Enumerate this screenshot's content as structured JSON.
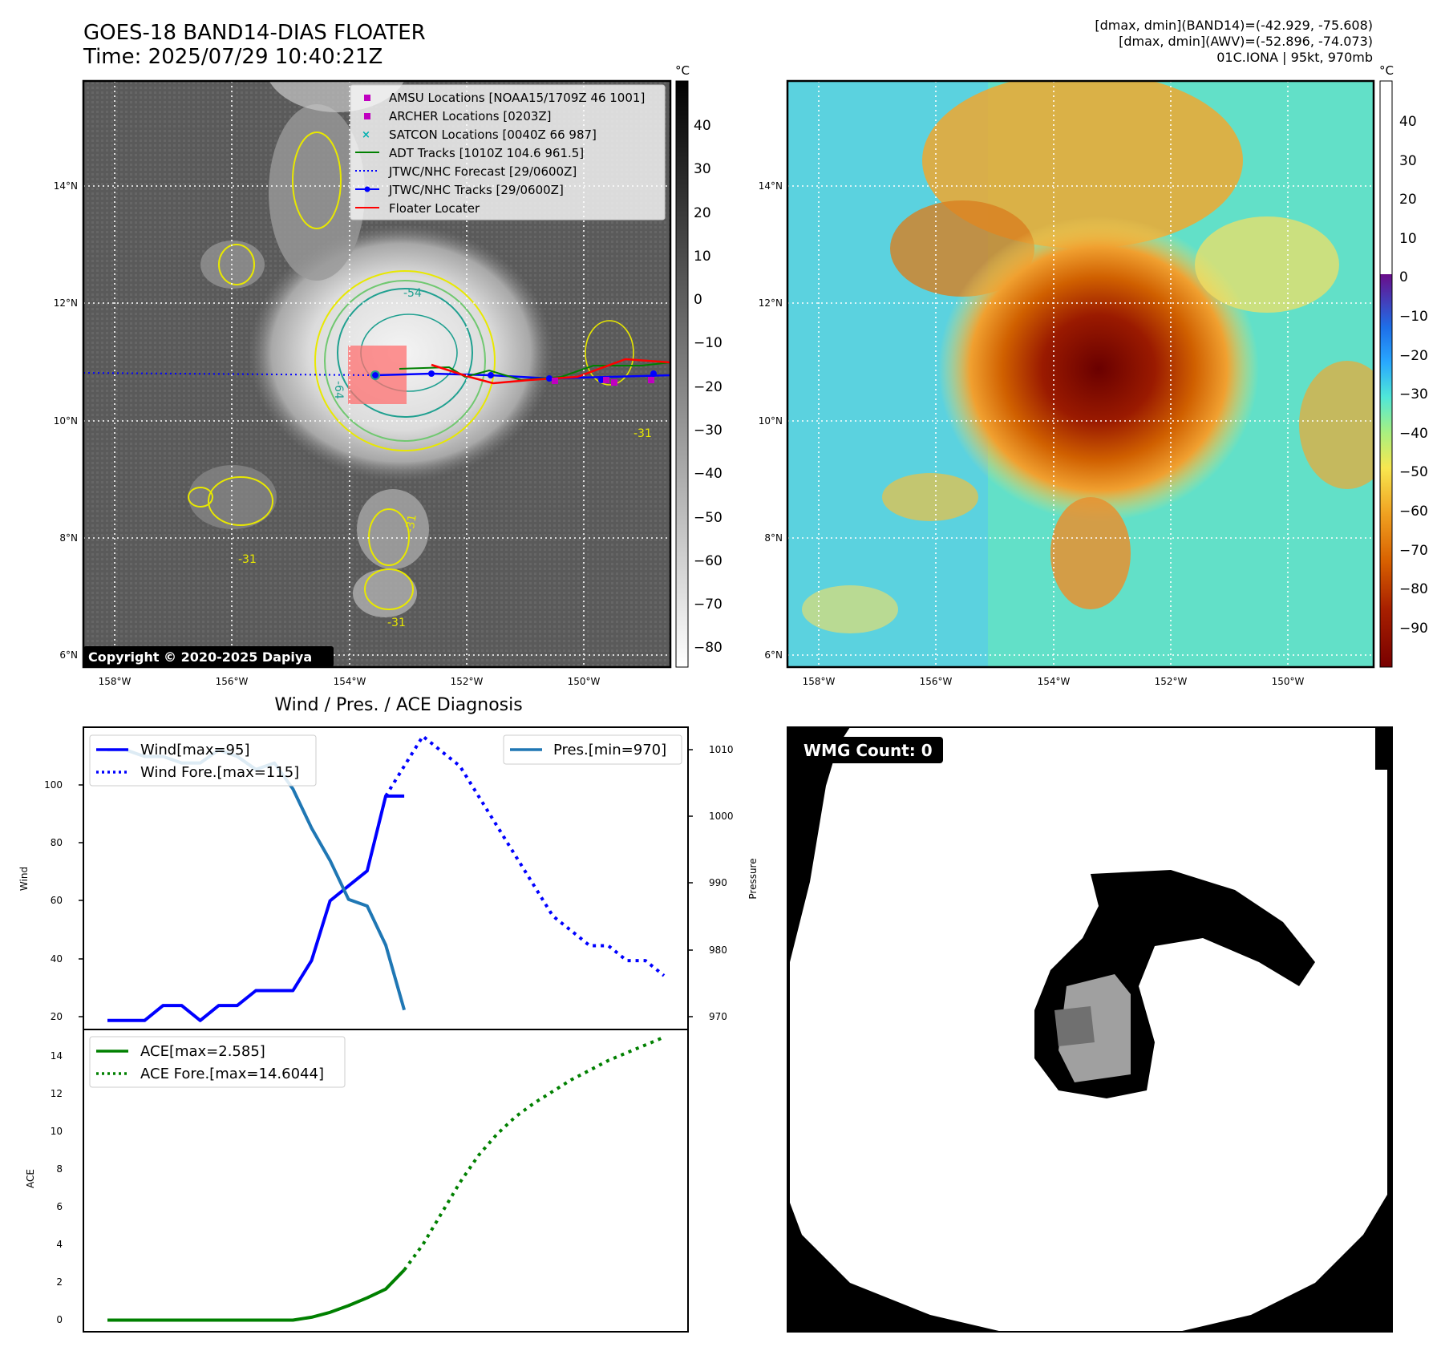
{
  "header": {
    "title_line1": "GOES-18 BAND14-DIAS FLOATER",
    "title_line2": "Time: 2025/07/29 10:40:21Z",
    "info_line1": "[dmax, dmin](BAND14)=(-42.929, -75.608)",
    "info_line2": "[dmax, dmin](AWV)=(-52.896, -74.073)",
    "info_line3": "01C.IONA | 95kt, 970mb"
  },
  "ir_map": {
    "lon_labels": [
      "158°W",
      "156°W",
      "154°W",
      "152°W",
      "150°W"
    ],
    "lat_labels": [
      "14°N",
      "12°N",
      "10°N",
      "8°N",
      "6°N"
    ],
    "colorbar_unit": "°C",
    "colorbar_ticks": [
      "40",
      "30",
      "20",
      "10",
      "0",
      "−10",
      "−20",
      "−30",
      "−40",
      "−50",
      "−60",
      "−70",
      "−80"
    ],
    "contour_labels": [
      "-54",
      "-64",
      "-31",
      "-31",
      "-31",
      "-31"
    ],
    "copyright": "Copyright © 2020-2025 Dapiya",
    "legend": [
      {
        "label": "AMSU Locations [NOAA15/1709Z 46 1001]",
        "color": "#c000c0",
        "marker": "square"
      },
      {
        "label": "ARCHER Locations [0203Z]",
        "color": "#c000c0",
        "marker": "square"
      },
      {
        "label": "SATCON Locations [0040Z 66 987]",
        "color": "#00b0b0",
        "marker": "x"
      },
      {
        "label": "ADT Tracks [1010Z 104.6 961.5]",
        "color": "#008000",
        "marker": "line"
      },
      {
        "label": "JTWC/NHC Forecast [29/0600Z]",
        "color": "#0000ff",
        "marker": "dotted"
      },
      {
        "label": "JTWC/NHC Tracks [29/0600Z]",
        "color": "#0000ff",
        "marker": "line-dot"
      },
      {
        "label": "Floater Locater",
        "color": "#ff0000",
        "marker": "line"
      }
    ]
  },
  "awv_map": {
    "lon_labels": [
      "158°W",
      "156°W",
      "154°W",
      "152°W",
      "150°W"
    ],
    "lat_labels": [
      "14°N",
      "12°N",
      "10°N",
      "8°N",
      "6°N"
    ],
    "colorbar_unit": "°C",
    "colorbar_ticks": [
      "40",
      "30",
      "20",
      "10",
      "0",
      "−10",
      "−20",
      "−30",
      "−40",
      "−50",
      "−60",
      "−70",
      "−80",
      "−90"
    ]
  },
  "diagnosis": {
    "title": "Wind / Pres. / ACE Diagnosis",
    "wind_ylabel": "Wind",
    "pres_ylabel": "Pressure",
    "ace_ylabel": "ACE",
    "legend_wind": "Wind[max=95]",
    "legend_wind_fore": "Wind Fore.[max=115]",
    "legend_pres": "Pres.[min=970]",
    "legend_ace": "ACE[max=2.585]",
    "legend_ace_fore": "ACE Fore.[max=14.6044]",
    "wind_ticks": [
      "100",
      "80",
      "60",
      "40",
      "20"
    ],
    "pres_ticks": [
      "1010",
      "1000",
      "990",
      "980",
      "970"
    ],
    "ace_ticks": [
      "14",
      "12",
      "10",
      "8",
      "6",
      "4",
      "2",
      "0"
    ]
  },
  "wmg": {
    "count_label": "WMG Count: 0"
  },
  "chart_data": [
    {
      "type": "line",
      "title": "Wind / Pres. / ACE Diagnosis",
      "ylabel": "Wind",
      "ylim": [
        17,
        118
      ],
      "x_index_range": [
        0,
        30
      ],
      "series": [
        {
          "name": "Wind[max=95]",
          "color": "#0000ff",
          "style": "solid",
          "x": [
            0,
            1,
            2,
            3,
            4,
            5,
            6,
            7,
            8,
            9,
            10,
            11,
            12,
            13,
            14,
            15,
            16
          ],
          "values": [
            20,
            20,
            20,
            25,
            25,
            20,
            25,
            25,
            30,
            30,
            30,
            40,
            60,
            65,
            70,
            95,
            95
          ]
        },
        {
          "name": "Wind Fore.[max=115]",
          "color": "#0000ff",
          "style": "dotted",
          "x": [
            15,
            16,
            17,
            18,
            19,
            20,
            21,
            22,
            23,
            24,
            25,
            26,
            27,
            28,
            29,
            30
          ],
          "values": [
            95,
            105,
            115,
            110,
            105,
            95,
            85,
            75,
            65,
            55,
            50,
            45,
            45,
            40,
            40,
            35
          ]
        },
        {
          "name": "Pres.[min=970]",
          "color": "#1f77b4",
          "style": "solid",
          "axis": "right",
          "ylim": [
            967,
            1013.5
          ],
          "x": [
            0,
            1,
            2,
            3,
            4,
            5,
            6,
            7,
            8,
            9,
            10,
            11,
            12,
            13,
            14,
            15,
            16
          ],
          "values": [
            1010,
            1010,
            1009,
            1009,
            1008,
            1008,
            1010,
            1009,
            1007,
            1008,
            1004,
            998,
            993,
            987,
            986,
            980,
            970
          ]
        }
      ]
    },
    {
      "type": "line",
      "ylabel": "ACE",
      "ylim": [
        -0.6,
        15
      ],
      "x_index_range": [
        0,
        30
      ],
      "series": [
        {
          "name": "ACE[max=2.585]",
          "color": "#008000",
          "style": "solid",
          "x": [
            0,
            1,
            2,
            3,
            4,
            5,
            6,
            7,
            8,
            9,
            10,
            11,
            12,
            13,
            14,
            15,
            16
          ],
          "values": [
            0,
            0,
            0,
            0,
            0,
            0,
            0,
            0,
            0,
            0,
            0,
            0.15,
            0.4,
            0.75,
            1.15,
            1.6,
            2.585
          ]
        },
        {
          "name": "ACE Fore.[max=14.6044]",
          "color": "#008000",
          "style": "dotted",
          "x": [
            16,
            17,
            18,
            19,
            20,
            21,
            22,
            23,
            24,
            25,
            26,
            27,
            28,
            29,
            30
          ],
          "values": [
            2.585,
            3.9,
            5.5,
            7.1,
            8.5,
            9.6,
            10.5,
            11.2,
            11.8,
            12.4,
            12.9,
            13.4,
            13.8,
            14.2,
            14.6044
          ]
        }
      ]
    }
  ]
}
